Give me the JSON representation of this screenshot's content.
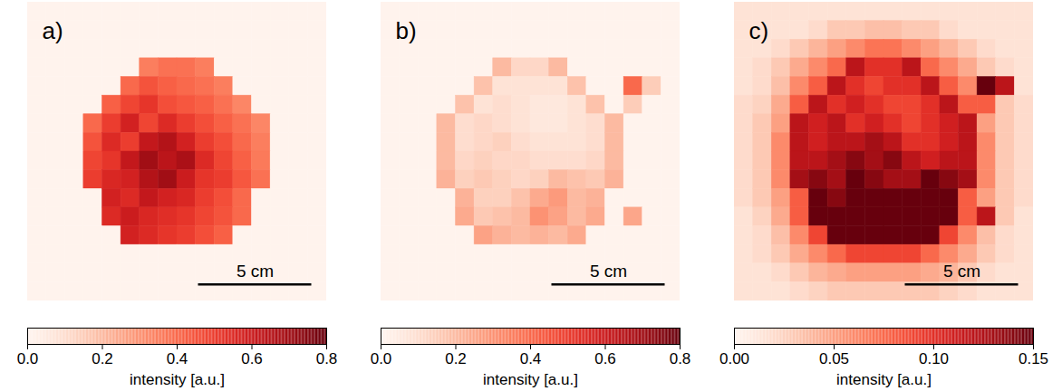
{
  "chart_data": [
    {
      "type": "heatmap",
      "title": "a)",
      "xlim": [
        0,
        13.2
      ],
      "ylim": [
        0,
        13.2
      ],
      "tick_labels": false,
      "scale_bar": {
        "length": 5,
        "label": "5 cm"
      },
      "colorbar": {
        "range": [
          0,
          0.8
        ],
        "ticks": [
          {
            "value": 0,
            "label": "0.0"
          },
          0.2,
          0.4,
          0.6,
          0.8
        ],
        "label": "intensity [a.u.]"
      },
      "cells": [
        [
          0.01,
          0.01,
          0.01,
          0.01,
          0.01,
          0.01,
          0.01,
          0.01,
          0.01,
          0.01,
          0.01,
          0.01,
          0.01,
          0.01,
          0.01,
          0.01
        ],
        [
          0.01,
          0.01,
          0.01,
          0.01,
          0.01,
          0.01,
          0.01,
          0.01,
          0.01,
          0.01,
          0.01,
          0.01,
          0.01,
          0.01,
          0.01,
          0.01
        ],
        [
          0.01,
          0.01,
          0.01,
          0.01,
          0.01,
          0.01,
          0.01,
          0.01,
          0.01,
          0.01,
          0.01,
          0.01,
          0.01,
          0.01,
          0.01,
          0.01
        ],
        [
          0.01,
          0.01,
          0.01,
          0.01,
          0.01,
          0.01,
          0.35,
          0.38,
          0.38,
          0.35,
          0.01,
          0.01,
          0.01,
          0.01,
          0.01,
          0.01
        ],
        [
          0.01,
          0.01,
          0.01,
          0.01,
          0.01,
          0.4,
          0.45,
          0.42,
          0.4,
          0.38,
          0.35,
          0.01,
          0.01,
          0.01,
          0.01,
          0.01
        ],
        [
          0.01,
          0.01,
          0.01,
          0.01,
          0.42,
          0.48,
          0.52,
          0.46,
          0.44,
          0.42,
          0.38,
          0.33,
          0.01,
          0.01,
          0.01,
          0.01
        ],
        [
          0.01,
          0.01,
          0.01,
          0.4,
          0.5,
          0.58,
          0.48,
          0.55,
          0.5,
          0.46,
          0.42,
          0.38,
          0.33,
          0.01,
          0.01,
          0.01
        ],
        [
          0.01,
          0.01,
          0.01,
          0.45,
          0.55,
          0.5,
          0.62,
          0.66,
          0.58,
          0.5,
          0.46,
          0.4,
          0.35,
          0.01,
          0.01,
          0.01
        ],
        [
          0.01,
          0.01,
          0.01,
          0.48,
          0.52,
          0.62,
          0.7,
          0.64,
          0.68,
          0.55,
          0.48,
          0.42,
          0.36,
          0.01,
          0.01,
          0.01
        ],
        [
          0.01,
          0.01,
          0.01,
          0.5,
          0.56,
          0.58,
          0.66,
          0.7,
          0.6,
          0.52,
          0.5,
          0.44,
          0.38,
          0.01,
          0.01,
          0.01
        ],
        [
          0.01,
          0.01,
          0.01,
          0.01,
          0.58,
          0.55,
          0.62,
          0.58,
          0.56,
          0.5,
          0.46,
          0.4,
          0.01,
          0.01,
          0.01,
          0.01
        ],
        [
          0.01,
          0.01,
          0.01,
          0.01,
          0.55,
          0.6,
          0.56,
          0.54,
          0.52,
          0.48,
          0.45,
          0.4,
          0.01,
          0.01,
          0.01,
          0.01
        ],
        [
          0.01,
          0.01,
          0.01,
          0.01,
          0.01,
          0.58,
          0.55,
          0.52,
          0.5,
          0.46,
          0.42,
          0.01,
          0.01,
          0.01,
          0.01,
          0.01
        ],
        [
          0.01,
          0.01,
          0.01,
          0.01,
          0.01,
          0.01,
          0.01,
          0.01,
          0.01,
          0.01,
          0.01,
          0.01,
          0.01,
          0.01,
          0.01,
          0.01
        ],
        [
          0.01,
          0.01,
          0.01,
          0.01,
          0.01,
          0.01,
          0.01,
          0.01,
          0.01,
          0.01,
          0.01,
          0.01,
          0.01,
          0.01,
          0.01,
          0.01
        ],
        [
          0.01,
          0.01,
          0.01,
          0.01,
          0.01,
          0.01,
          0.01,
          0.01,
          0.01,
          0.01,
          0.01,
          0.01,
          0.01,
          0.01,
          0.01,
          0.01
        ]
      ]
    },
    {
      "type": "heatmap",
      "title": "b)",
      "xlim": [
        0,
        13.2
      ],
      "ylim": [
        0,
        13.2
      ],
      "tick_labels": false,
      "scale_bar": {
        "length": 5,
        "label": "5 cm"
      },
      "colorbar": {
        "range": [
          0,
          0.8
        ],
        "ticks": [
          {
            "value": 0,
            "label": "0.0"
          },
          0.2,
          0.4,
          0.6,
          0.8
        ],
        "label": "intensity [a.u.]"
      },
      "cells": [
        [
          0.01,
          0.01,
          0.01,
          0.01,
          0.01,
          0.01,
          0.01,
          0.01,
          0.01,
          0.01,
          0.01,
          0.01,
          0.01,
          0.01,
          0.01,
          0.01
        ],
        [
          0.01,
          0.01,
          0.01,
          0.01,
          0.01,
          0.01,
          0.01,
          0.01,
          0.01,
          0.01,
          0.01,
          0.01,
          0.01,
          0.01,
          0.01,
          0.01
        ],
        [
          0.01,
          0.01,
          0.01,
          0.01,
          0.01,
          0.01,
          0.01,
          0.01,
          0.01,
          0.01,
          0.01,
          0.01,
          0.01,
          0.01,
          0.01,
          0.01
        ],
        [
          0.01,
          0.01,
          0.01,
          0.01,
          0.01,
          0.01,
          0.2,
          0.12,
          0.12,
          0.2,
          0.01,
          0.01,
          0.01,
          0.01,
          0.01,
          0.01
        ],
        [
          0.01,
          0.01,
          0.01,
          0.01,
          0.01,
          0.18,
          0.08,
          0.08,
          0.08,
          0.08,
          0.18,
          0.01,
          0.01,
          0.4,
          0.15,
          0.01
        ],
        [
          0.01,
          0.01,
          0.01,
          0.01,
          0.18,
          0.08,
          0.1,
          0.08,
          0.06,
          0.06,
          0.08,
          0.18,
          0.01,
          0.15,
          0.01,
          0.01
        ],
        [
          0.01,
          0.01,
          0.01,
          0.2,
          0.1,
          0.12,
          0.1,
          0.08,
          0.06,
          0.06,
          0.08,
          0.1,
          0.2,
          0.01,
          0.01,
          0.01
        ],
        [
          0.01,
          0.01,
          0.01,
          0.2,
          0.1,
          0.12,
          0.14,
          0.1,
          0.08,
          0.08,
          0.08,
          0.1,
          0.2,
          0.01,
          0.01,
          0.01
        ],
        [
          0.01,
          0.01,
          0.01,
          0.2,
          0.12,
          0.14,
          0.12,
          0.12,
          0.1,
          0.1,
          0.1,
          0.12,
          0.2,
          0.01,
          0.01,
          0.01
        ],
        [
          0.01,
          0.01,
          0.01,
          0.22,
          0.14,
          0.16,
          0.14,
          0.12,
          0.14,
          0.2,
          0.18,
          0.16,
          0.22,
          0.01,
          0.01,
          0.01
        ],
        [
          0.01,
          0.01,
          0.01,
          0.01,
          0.22,
          0.14,
          0.14,
          0.18,
          0.24,
          0.28,
          0.2,
          0.22,
          0.01,
          0.01,
          0.01,
          0.01
        ],
        [
          0.01,
          0.01,
          0.01,
          0.01,
          0.24,
          0.16,
          0.18,
          0.2,
          0.3,
          0.26,
          0.2,
          0.24,
          0.01,
          0.25,
          0.01,
          0.01
        ],
        [
          0.01,
          0.01,
          0.01,
          0.01,
          0.01,
          0.26,
          0.22,
          0.2,
          0.22,
          0.2,
          0.24,
          0.01,
          0.01,
          0.01,
          0.01,
          0.01
        ],
        [
          0.01,
          0.01,
          0.01,
          0.01,
          0.01,
          0.01,
          0.01,
          0.01,
          0.01,
          0.01,
          0.01,
          0.01,
          0.01,
          0.01,
          0.01,
          0.01
        ],
        [
          0.01,
          0.01,
          0.01,
          0.01,
          0.01,
          0.01,
          0.01,
          0.01,
          0.01,
          0.01,
          0.01,
          0.01,
          0.01,
          0.01,
          0.01,
          0.01
        ],
        [
          0.01,
          0.01,
          0.01,
          0.01,
          0.01,
          0.01,
          0.01,
          0.01,
          0.01,
          0.01,
          0.01,
          0.01,
          0.01,
          0.01,
          0.01,
          0.01
        ]
      ]
    },
    {
      "type": "heatmap",
      "title": "c)",
      "xlim": [
        0,
        13.2
      ],
      "ylim": [
        0,
        13.2
      ],
      "tick_labels": false,
      "scale_bar": {
        "length": 5,
        "label": "5 cm"
      },
      "colorbar": {
        "range": [
          0,
          0.15
        ],
        "ticks": [
          {
            "value": 0,
            "label": "0.00"
          },
          0.05,
          {
            "value": 0.1,
            "label": "0.10"
          },
          0.15
        ],
        "label": "intensity [a.u.]"
      },
      "cells": [
        [
          0.015,
          0.015,
          0.015,
          0.015,
          0.015,
          0.015,
          0.015,
          0.015,
          0.015,
          0.015,
          0.015,
          0.015,
          0.015,
          0.015,
          0.015,
          0.015
        ],
        [
          0.015,
          0.015,
          0.015,
          0.015,
          0.02,
          0.03,
          0.03,
          0.035,
          0.035,
          0.03,
          0.03,
          0.02,
          0.015,
          0.015,
          0.015,
          0.015
        ],
        [
          0.015,
          0.015,
          0.02,
          0.03,
          0.04,
          0.05,
          0.06,
          0.07,
          0.07,
          0.06,
          0.05,
          0.04,
          0.03,
          0.02,
          0.015,
          0.015
        ],
        [
          0.015,
          0.02,
          0.03,
          0.045,
          0.06,
          0.075,
          0.12,
          0.1,
          0.1,
          0.12,
          0.075,
          0.06,
          0.045,
          0.03,
          0.02,
          0.015
        ],
        [
          0.015,
          0.02,
          0.035,
          0.06,
          0.08,
          0.12,
          0.1,
          0.09,
          0.1,
          0.1,
          0.12,
          0.08,
          0.06,
          0.15,
          0.12,
          0.015
        ],
        [
          0.02,
          0.025,
          0.045,
          0.08,
          0.12,
          0.1,
          0.11,
          0.1,
          0.09,
          0.09,
          0.1,
          0.12,
          0.08,
          0.08,
          0.03,
          0.02
        ],
        [
          0.02,
          0.03,
          0.05,
          0.12,
          0.11,
          0.12,
          0.1,
          0.11,
          0.1,
          0.09,
          0.1,
          0.11,
          0.12,
          0.05,
          0.03,
          0.02
        ],
        [
          0.02,
          0.03,
          0.06,
          0.12,
          0.11,
          0.12,
          0.12,
          0.13,
          0.12,
          0.1,
          0.1,
          0.11,
          0.12,
          0.06,
          0.03,
          0.02
        ],
        [
          0.02,
          0.03,
          0.06,
          0.12,
          0.12,
          0.13,
          0.14,
          0.13,
          0.14,
          0.12,
          0.11,
          0.12,
          0.12,
          0.06,
          0.03,
          0.02
        ],
        [
          0.02,
          0.03,
          0.06,
          0.13,
          0.14,
          0.13,
          0.15,
          0.14,
          0.13,
          0.13,
          0.15,
          0.14,
          0.13,
          0.06,
          0.03,
          0.02
        ],
        [
          0.02,
          0.03,
          0.05,
          0.08,
          0.15,
          0.14,
          0.15,
          0.15,
          0.15,
          0.15,
          0.15,
          0.15,
          0.08,
          0.05,
          0.03,
          0.02
        ],
        [
          0.015,
          0.025,
          0.045,
          0.08,
          0.15,
          0.15,
          0.15,
          0.15,
          0.15,
          0.15,
          0.15,
          0.15,
          0.08,
          0.12,
          0.03,
          0.015
        ],
        [
          0.015,
          0.02,
          0.035,
          0.06,
          0.09,
          0.15,
          0.15,
          0.15,
          0.15,
          0.15,
          0.15,
          0.09,
          0.06,
          0.035,
          0.02,
          0.015
        ],
        [
          0.015,
          0.02,
          0.03,
          0.045,
          0.06,
          0.075,
          0.09,
          0.09,
          0.09,
          0.09,
          0.075,
          0.06,
          0.045,
          0.03,
          0.02,
          0.015
        ],
        [
          0.015,
          0.015,
          0.02,
          0.03,
          0.04,
          0.045,
          0.05,
          0.05,
          0.05,
          0.05,
          0.045,
          0.04,
          0.03,
          0.02,
          0.015,
          0.015
        ],
        [
          0.015,
          0.015,
          0.015,
          0.02,
          0.025,
          0.03,
          0.03,
          0.03,
          0.03,
          0.03,
          0.03,
          0.025,
          0.02,
          0.015,
          0.015,
          0.015
        ]
      ]
    }
  ]
}
